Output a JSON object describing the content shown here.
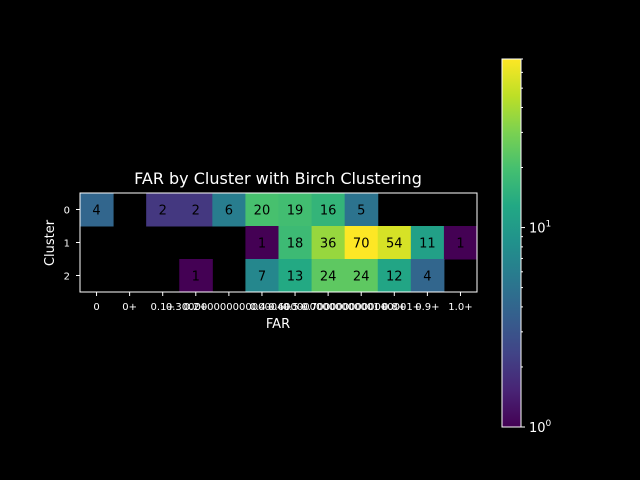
{
  "chart_data": {
    "type": "heatmap",
    "title": "FAR by Cluster with Birch Clustering",
    "xlabel": "FAR",
    "ylabel": "Cluster",
    "x_categories": [
      "0",
      "0+",
      "0.1+",
      "0.2+",
      "0.30000000000000004+",
      "0.4+",
      "0.5+",
      "0.6000000000000001+",
      "0.7000000000000001+",
      "0.8+",
      "0.9+",
      "1.0+"
    ],
    "x_tick_text": [
      "0",
      "0+",
      "0.1+",
      "0.2+",
      "0.30000000000000004+",
      "0.4+",
      "0.5+",
      "0.6000000000000001+",
      "0.7000000000000001+",
      "0.8+",
      "0.9+",
      "1.0+"
    ],
    "y_categories": [
      "0",
      "1",
      "2"
    ],
    "values": [
      [
        4,
        null,
        2,
        2,
        6,
        20,
        19,
        16,
        5,
        null,
        null,
        null
      ],
      [
        null,
        null,
        null,
        null,
        null,
        1,
        18,
        36,
        70,
        54,
        11,
        1
      ],
      [
        null,
        null,
        null,
        1,
        null,
        7,
        13,
        24,
        24,
        12,
        4,
        null
      ]
    ],
    "colormap": "viridis",
    "color_scale": "log",
    "color_range": [
      1,
      70
    ],
    "colorbar_ticks": [
      {
        "value": 1,
        "base": "10",
        "exp": "0"
      },
      {
        "value": 10,
        "base": "10",
        "exp": "1"
      }
    ]
  }
}
